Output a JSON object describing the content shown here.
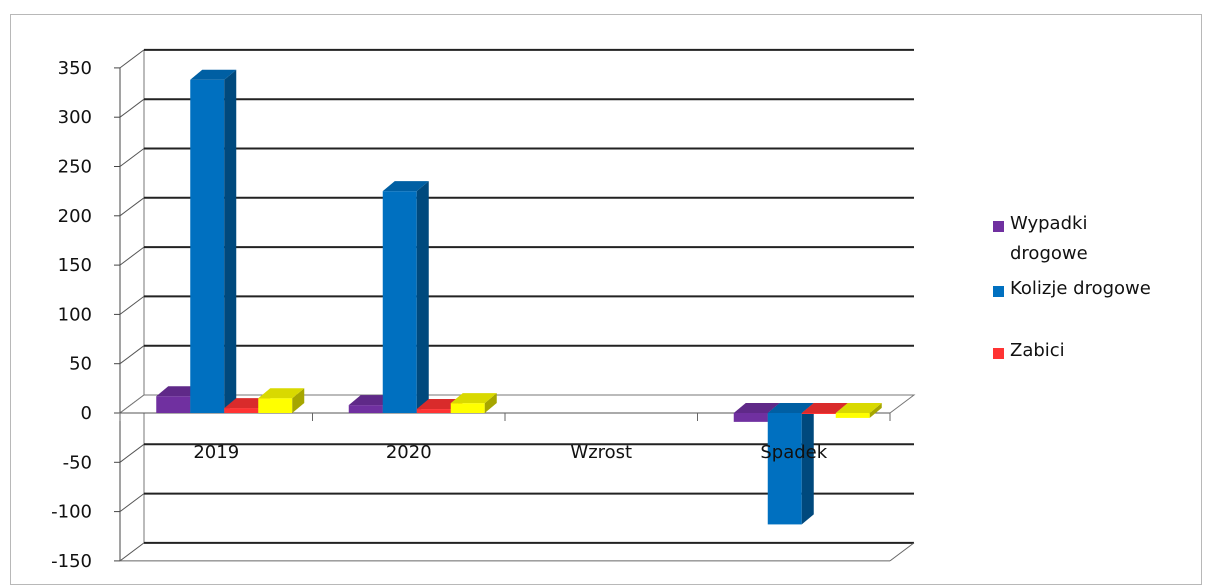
{
  "chart_data": {
    "type": "bar",
    "categories": [
      "2019",
      "2020",
      "Wzrost",
      "Spadek"
    ],
    "series": [
      {
        "name": "Wypadki drogowe",
        "color": "#7030A0",
        "values": [
          17,
          8,
          0,
          -9
        ]
      },
      {
        "name": "Kolizje drogowe",
        "color": "#0070C0",
        "values": [
          338,
          225,
          0,
          -113
        ]
      },
      {
        "name": "Zabici",
        "color": "#FF3333",
        "values": [
          5,
          4,
          0,
          -1
        ]
      },
      {
        "name": "",
        "color": "#FFFF00",
        "values": [
          15,
          10,
          0,
          -5
        ]
      }
    ],
    "y_ticks": [
      "350",
      "300",
      "250",
      "200",
      "150",
      "100",
      "50",
      "0",
      "-50",
      "-100",
      "-150"
    ],
    "ylim": [
      -150,
      350
    ],
    "grid": true,
    "legend_position": "right",
    "title": "",
    "xlabel": "",
    "ylabel": ""
  },
  "legend": {
    "items": [
      {
        "label": "Wypadki drogowe",
        "color": "#7030A0"
      },
      {
        "label": "Kolizje drogowe",
        "color": "#0070C0"
      },
      {
        "label": "Zabici",
        "color": "#FF3333"
      }
    ]
  }
}
